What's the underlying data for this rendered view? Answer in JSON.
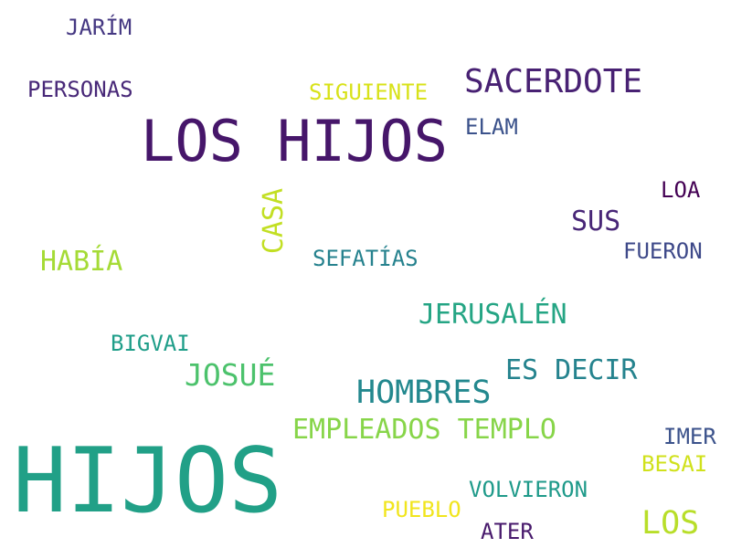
{
  "words": {
    "hijos_big": {
      "text": "HIJOS",
      "color": "#21a087"
    },
    "los_hijos": {
      "text": "LOS HIJOS",
      "color": "#46166a"
    },
    "sacerdote": {
      "text": "SACERDOTE",
      "color": "#482173"
    },
    "hombres": {
      "text": "HOMBRES",
      "color": "#23888e"
    },
    "josue": {
      "text": "JOSUÉ",
      "color": "#4cc26c"
    },
    "los_small": {
      "text": "LOS",
      "color": "#b8de29"
    },
    "jerusalen": {
      "text": "JERUSALÉN",
      "color": "#25a584"
    },
    "es_decir": {
      "text": "ES DECIR",
      "color": "#25838e"
    },
    "empleados": {
      "text": "EMPLEADOS TEMPLO",
      "color": "#87d549"
    },
    "habia": {
      "text": "HABÍA",
      "color": "#a5db36"
    },
    "sus": {
      "text": "SUS",
      "color": "#482677"
    },
    "casa": {
      "text": "CASA",
      "color": "#c2df23"
    },
    "siguiente": {
      "text": "SIGUIENTE",
      "color": "#d8e219"
    },
    "personas": {
      "text": "PERSONAS",
      "color": "#482878"
    },
    "jarim": {
      "text": "JARÍM",
      "color": "#453882"
    },
    "elam": {
      "text": "ELAM",
      "color": "#3b528b"
    },
    "loa": {
      "text": "LOA",
      "color": "#440154"
    },
    "fueron": {
      "text": "FUERON",
      "color": "#3e4989"
    },
    "sefatias": {
      "text": "SEFATÍAS",
      "color": "#26828e"
    },
    "bigvai": {
      "text": "BIGVAI",
      "color": "#1f9e89"
    },
    "imer": {
      "text": "IMER",
      "color": "#3b528b"
    },
    "besai": {
      "text": "BESAI",
      "color": "#d0e11c"
    },
    "volvieron": {
      "text": "VOLVIERON",
      "color": "#1f9a8a"
    },
    "pueblo": {
      "text": "PUEBLO",
      "color": "#f1e51d"
    },
    "ater": {
      "text": "ATER",
      "color": "#481a6c"
    }
  }
}
